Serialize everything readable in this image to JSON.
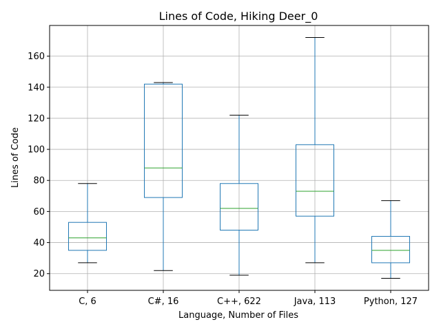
{
  "chart_data": {
    "type": "box",
    "title": "Lines of Code, Hiking Deer_0",
    "xlabel": "Language, Number of Files",
    "ylabel": "Lines of Code",
    "categories": [
      "C, 6",
      "C#, 16",
      "C++, 622",
      "Java, 113",
      "Python, 127"
    ],
    "boxes": [
      {
        "label": "C, 6",
        "whisker_low": 27,
        "q1": 35,
        "median": 43,
        "q3": 53,
        "whisker_high": 78
      },
      {
        "label": "C#, 16",
        "whisker_low": 22,
        "q1": 69,
        "median": 88,
        "q3": 142,
        "whisker_high": 143
      },
      {
        "label": "C++, 622",
        "whisker_low": 19,
        "q1": 48,
        "median": 62,
        "q3": 78,
        "whisker_high": 122
      },
      {
        "label": "Java, 113",
        "whisker_low": 27,
        "q1": 57,
        "median": 73,
        "q3": 103,
        "whisker_high": 172
      },
      {
        "label": "Python, 127",
        "whisker_low": 17,
        "q1": 27,
        "median": 35,
        "q3": 44,
        "whisker_high": 67
      }
    ],
    "yticks": [
      20,
      40,
      60,
      80,
      100,
      120,
      140,
      160
    ],
    "ylim": [
      9.25,
      179.75
    ],
    "grid": true,
    "colors": {
      "box": "#1f77b4",
      "median": "#2ca02c",
      "cap": "#000000",
      "grid": "#b0b0b0"
    }
  }
}
